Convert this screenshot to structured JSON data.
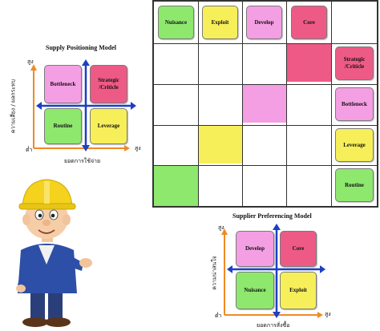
{
  "colors": {
    "nuisance": "#8ee86e",
    "exploit": "#f7ef5a",
    "develop": "#f49fe3",
    "core": "#ee5a86",
    "strategic": "#ee5a86",
    "bottleneck": "#f49fe3",
    "leverage": "#f7ef5a",
    "routine": "#8ee86e",
    "axis_arrow_orange": "#f08a24",
    "cross_arrow_blue": "#1d3fc4"
  },
  "matrix": {
    "top_labels": [
      "Nuisance",
      "Exploit",
      "Develop",
      "Core"
    ],
    "right_labels": [
      "Strategic /Criticle",
      "Bottleneck",
      "Leverage",
      "Routine"
    ]
  },
  "supply_positioning": {
    "title": "Supply Positioning Model",
    "quadrants": {
      "top_left": "Bottleneck",
      "top_right": "Strategic /Criticle",
      "bottom_left": "Routine",
      "bottom_right": "Leverage"
    },
    "y_axis_label": "ความเสี่ยง / ผลกระทบ",
    "x_axis_label": "ยอดการใช้จ่าย",
    "high_label": "สูง",
    "low_label": "ต่ำ"
  },
  "supplier_preferencing": {
    "title": "Supplier Preferencing Model",
    "quadrants": {
      "top_left": "Develop",
      "top_right": "Core",
      "bottom_left": "Nuisance",
      "bottom_right": "Exploit"
    },
    "y_axis_label": "ความน่าสนใจ",
    "x_axis_label": "ยอดการสั่งซื้อ",
    "high_label": "สูง",
    "low_label": "ต่ำ"
  },
  "mascot": {
    "icon": "engineer-mascot-icon"
  }
}
